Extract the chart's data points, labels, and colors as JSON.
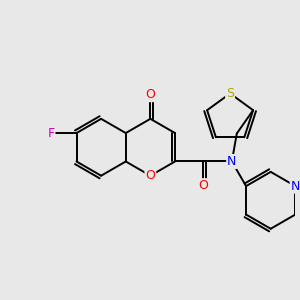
{
  "bg_color": "#e8e8e8",
  "atom_colors": {
    "O": "#ff0000",
    "N": "#0000ff",
    "F": "#cc00cc",
    "S": "#aaaa00",
    "C": "#000000"
  },
  "lw": 1.4,
  "dbo": 0.055,
  "figsize": [
    3.0,
    3.0
  ],
  "dpi": 100,
  "xlim": [
    -2.6,
    2.8
  ],
  "ylim": [
    -2.3,
    2.2
  ],
  "BL": 0.52,
  "fontsize": 9
}
